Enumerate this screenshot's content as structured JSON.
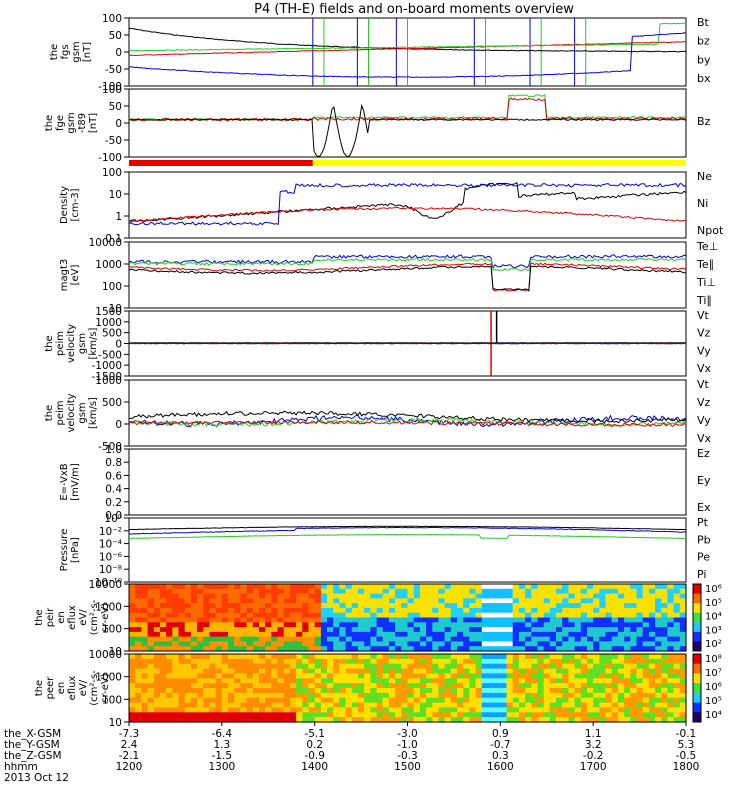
{
  "title": "P4 (TH-E) fields and on-board moments overview",
  "colors": {
    "red": "#e00000",
    "green": "#22cc22",
    "blue": "#0000e0",
    "black": "#000000",
    "yellow": "#ffff00"
  },
  "chart_data": [
    {
      "type": "line",
      "id": "fgs",
      "ylabel": [
        "the",
        "fgs",
        "gsm",
        "[nT]"
      ],
      "yticks": [
        "100",
        "50",
        "0",
        "-50",
        "-100"
      ],
      "legend": [
        {
          "name": "Bt",
          "color": "black"
        },
        {
          "name": "bz",
          "color": "red"
        },
        {
          "name": "by",
          "color": "green"
        },
        {
          "name": "bx",
          "color": "blue"
        }
      ]
    },
    {
      "type": "line",
      "id": "fge",
      "ylabel": [
        "the",
        "fge",
        "gsm",
        "-t89",
        "[nT]"
      ],
      "yticks": [
        "100",
        "50",
        "0",
        "-50",
        "-100"
      ],
      "legend": [
        {
          "name": "Bz",
          "color": "black"
        }
      ]
    },
    {
      "type": "line",
      "id": "density",
      "ylabel": [
        "Density",
        "[cm-3]"
      ],
      "yticks": [
        "100",
        "10",
        "1",
        "0.1"
      ],
      "scale": "log",
      "legend": [
        {
          "name": "Ne",
          "color": "red"
        },
        {
          "name": "Ni",
          "color": "black"
        },
        {
          "name": "Npot",
          "color": "blue"
        }
      ]
    },
    {
      "type": "line",
      "id": "temp",
      "ylabel": [
        "magt3",
        "[eV]"
      ],
      "yticks": [
        "10000",
        "1000",
        "100",
        "10"
      ],
      "scale": "log",
      "legend": [
        {
          "name": "Te⊥",
          "color": "red"
        },
        {
          "name": "Te∥",
          "color": "black"
        },
        {
          "name": "Ti⊥",
          "color": "blue"
        },
        {
          "name": "Ti∥",
          "color": "green"
        }
      ]
    },
    {
      "type": "line",
      "id": "peim1",
      "ylabel": [
        "the",
        "peim",
        "velocity",
        "gsm",
        "[km/s]"
      ],
      "yticks": [
        "1500",
        "1000",
        "500",
        "0",
        "-500",
        "-1000",
        "-1500"
      ],
      "legend": [
        {
          "name": "Vt",
          "color": "black"
        },
        {
          "name": "Vz",
          "color": "red"
        },
        {
          "name": "Vy",
          "color": "green"
        },
        {
          "name": "Vx",
          "color": "blue"
        }
      ]
    },
    {
      "type": "line",
      "id": "peim2",
      "ylabel": [
        "the",
        "peim",
        "velocity",
        "gsm",
        "[km/s]"
      ],
      "yticks": [
        "1000",
        "500",
        "0",
        "-500"
      ],
      "legend": [
        {
          "name": "Vt",
          "color": "black"
        },
        {
          "name": "Vz",
          "color": "red"
        },
        {
          "name": "Vy",
          "color": "green"
        },
        {
          "name": "Vx",
          "color": "blue"
        }
      ]
    },
    {
      "type": "line",
      "id": "efield",
      "ylabel": [
        "E=-VxB",
        "[mV/m]"
      ],
      "yticks": [
        "1.0",
        "0.8",
        "0.6",
        "0.4",
        "0.2",
        "0.0"
      ],
      "legend": [
        {
          "name": "Ez",
          "color": "red"
        },
        {
          "name": "Ey",
          "color": "green"
        },
        {
          "name": "Ex",
          "color": "blue"
        }
      ]
    },
    {
      "type": "line",
      "id": "pressure",
      "ylabel": [
        "Pressure",
        "[nPa]"
      ],
      "yticks": [
        "10⁰",
        "10⁻²",
        "10⁻⁴",
        "10⁻⁶",
        "10⁻⁸",
        "10⁻¹⁰"
      ],
      "scale": "log",
      "legend": [
        {
          "name": "Pt",
          "color": "black"
        },
        {
          "name": "Pb",
          "color": "red"
        },
        {
          "name": "Pe",
          "color": "green"
        },
        {
          "name": "Pi",
          "color": "blue"
        }
      ]
    },
    {
      "type": "heatmap",
      "id": "peir",
      "ylabel": [
        "the",
        "peir",
        "en",
        "eflux",
        "eV/",
        "(cm²-s-",
        "sr-eV)"
      ],
      "yticks": [
        "10000",
        "1000",
        "100",
        "10"
      ],
      "colorbar": [
        "10⁶",
        "10⁵",
        "10⁴",
        "10³",
        "10²"
      ]
    },
    {
      "type": "heatmap",
      "id": "peer",
      "ylabel": [
        "the",
        "peer",
        "en",
        "eflux",
        "eV/",
        "(cm²-s-",
        "sr-eV)"
      ],
      "yticks": [
        "10000",
        "1000",
        "100",
        "10"
      ],
      "colorbar": [
        "10⁸",
        "10⁷",
        "10⁶",
        "10⁵",
        "10⁴"
      ]
    }
  ],
  "x_axis": {
    "rows": [
      {
        "label": "the_X-GSM",
        "values": [
          "-7.3",
          "-6.4",
          "-5.1",
          "-3.0",
          "0.9",
          "1.1",
          "-0.1"
        ]
      },
      {
        "label": "the_Y-GSM",
        "values": [
          "2.4",
          "1.3",
          "0.2",
          "-1.0",
          "-0.7",
          "3.2",
          "5.3"
        ]
      },
      {
        "label": "the_Z-GSM",
        "values": [
          "-2.1",
          "-1.5",
          "-0.9",
          "-0.3",
          "0.3",
          "-0.2",
          "-0.5"
        ]
      },
      {
        "label": "hhmm",
        "values": [
          "1200",
          "1300",
          "1400",
          "1500",
          "1600",
          "1700",
          "1800"
        ]
      }
    ],
    "date": "2013 Oct 12"
  },
  "mode_bar": {
    "segments": [
      {
        "color": "red",
        "fraction": 0.33
      },
      {
        "color": "yellow",
        "fraction": 0.67
      }
    ]
  }
}
